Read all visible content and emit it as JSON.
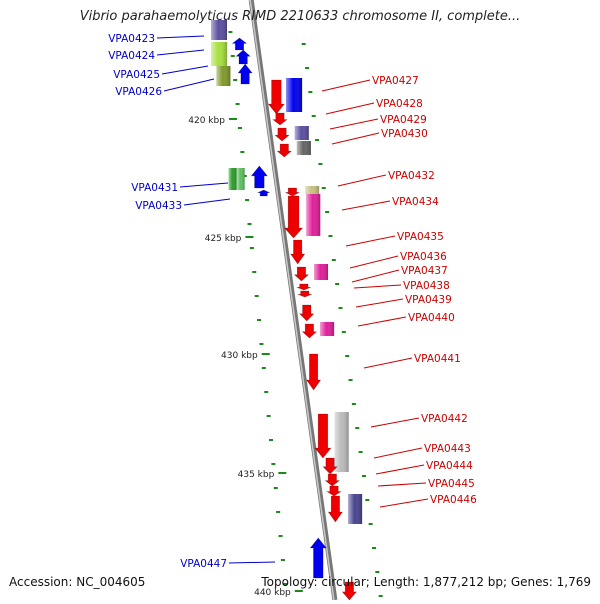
{
  "title": "Vibrio parahaemolyticus RIMD 2210633 chromosome II, complete...",
  "footer": {
    "accession": "Accession: NC_004605",
    "summary": "Topology: circular; Length: 1,877,212 bp; Genes: 1,769"
  },
  "colors": {
    "plus_label": "#0000cc",
    "minus_label": "#cc0000",
    "backbone": "#888888",
    "tick": "#1a8a1a"
  },
  "scale_labels": [
    "420 kbp",
    "425 kbp",
    "430 kbp",
    "435 kbp",
    "440 kbp"
  ],
  "genes_plus": [
    {
      "name": "VPA0423",
      "color": "#5b4fa0"
    },
    {
      "name": "VPA0424",
      "color": "#0000ee"
    },
    {
      "name": "VPA0425",
      "color": "#a6e040"
    },
    {
      "name": "VPA0426",
      "color": "#7f9a2a"
    },
    {
      "name": "VPA0431",
      "color": "#2c9e2c"
    },
    {
      "name": "VPA0433",
      "color": "#0000ee"
    },
    {
      "name": "VPA0447",
      "color": "#0000ee"
    }
  ],
  "genes_minus": [
    {
      "name": "VPA0427",
      "color": "#ee0000"
    },
    {
      "name": "VPA0428",
      "color": "#0000ee"
    },
    {
      "name": "VPA0429",
      "color": "#5b4fa0"
    },
    {
      "name": "VPA0430",
      "color": "#666666"
    },
    {
      "name": "VPA0432",
      "color": "#c8c080"
    },
    {
      "name": "VPA0434",
      "color": "#e0209a"
    },
    {
      "name": "VPA0435",
      "color": "#ee0000"
    },
    {
      "name": "VPA0436",
      "color": "#ee0000"
    },
    {
      "name": "VPA0437",
      "color": "#e0209a"
    },
    {
      "name": "VPA0438",
      "color": "#ee0000"
    },
    {
      "name": "VPA0439",
      "color": "#ee0000"
    },
    {
      "name": "VPA0440",
      "color": "#e0209a"
    },
    {
      "name": "VPA0441",
      "color": "#ee0000"
    },
    {
      "name": "VPA0442",
      "color": "#bbbbbb"
    },
    {
      "name": "VPA0443",
      "color": "#ee0000"
    },
    {
      "name": "VPA0444",
      "color": "#ee0000"
    },
    {
      "name": "VPA0445",
      "color": "#ee0000"
    },
    {
      "name": "VPA0446",
      "color": "#4a4590"
    }
  ]
}
